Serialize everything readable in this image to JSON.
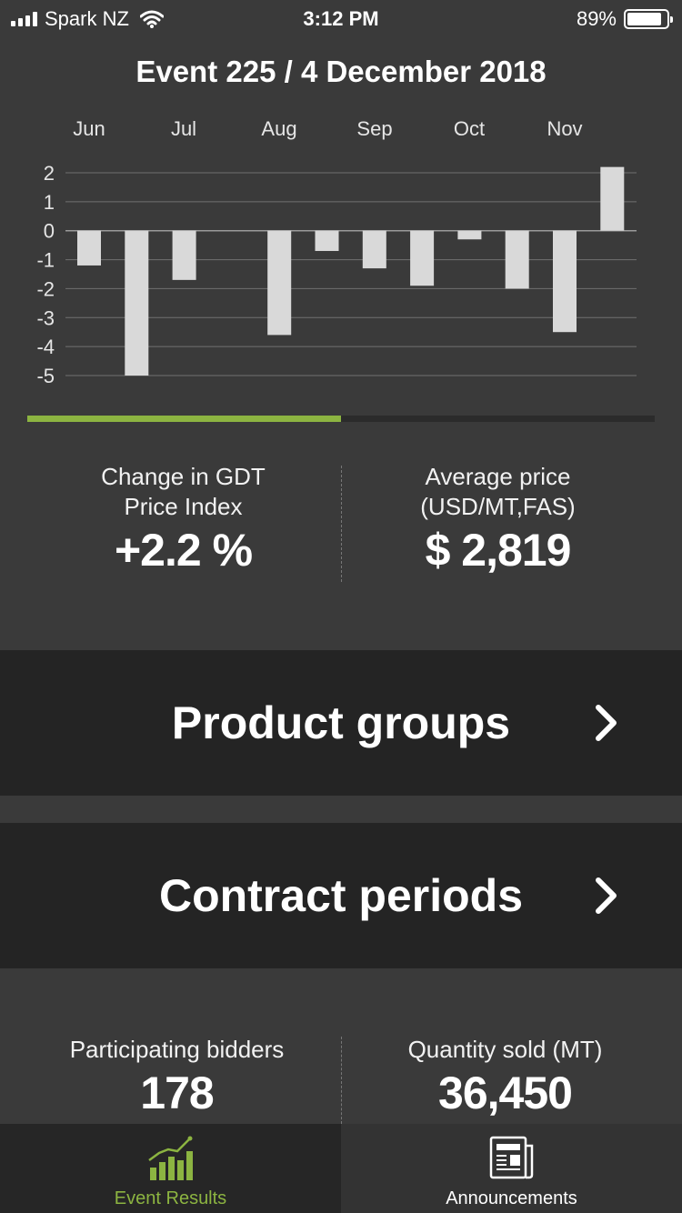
{
  "status_bar": {
    "carrier": "Spark NZ",
    "time": "3:12 PM",
    "battery": "89%",
    "battery_level": 0.89
  },
  "event": {
    "title": "Event 225 / 4 December 2018"
  },
  "chart_data": {
    "type": "bar",
    "x_tick_labels": [
      "Jun",
      "Jul",
      "Aug",
      "Sep",
      "Oct",
      "Nov"
    ],
    "y_tick_labels": [
      "2",
      "1",
      "0",
      "-1",
      "-2",
      "-3",
      "-4",
      "-5"
    ],
    "ylim": [
      -5,
      2
    ],
    "grid": true,
    "values": [
      -1.2,
      -5.0,
      -1.7,
      null,
      -3.6,
      -0.7,
      -1.3,
      -1.9,
      -0.3,
      -2.0,
      -3.5,
      2.2
    ]
  },
  "progress": {
    "fraction": 0.5
  },
  "stats_top": {
    "change_label": "Change in GDT Price Index",
    "change_value": "+2.2 %",
    "price_label_1": "Average price",
    "price_label_2": "(USD/MT,FAS)",
    "price_value": "$ 2,819"
  },
  "nav": {
    "product_groups": "Product groups",
    "contract_periods": "Contract periods"
  },
  "stats_bottom": {
    "bidders_label": "Participating bidders",
    "bidders_value": "178",
    "quantity_label": "Quantity sold (MT)",
    "quantity_value": "36,450"
  },
  "tabs": {
    "event_results": "Event Results",
    "announcements": "Announcements"
  },
  "colors": {
    "accent": "#8cb441",
    "bar": "#d9d9d9",
    "background": "#3a3a3a",
    "row_background": "#242424"
  },
  "icons": {
    "signal": "cellular-signal-icon",
    "wifi": "wifi-icon",
    "battery": "battery-icon",
    "chevron": "chevron-right-icon",
    "event_results": "bar-chart-trend-icon",
    "announcements": "newspaper-icon"
  }
}
